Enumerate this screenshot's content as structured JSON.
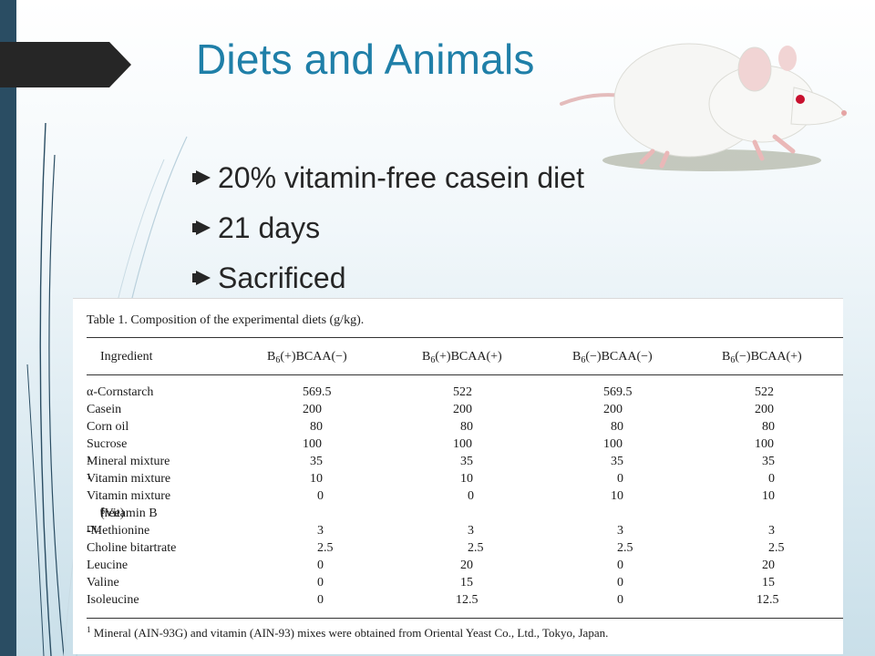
{
  "slide": {
    "title": "Diets and Animals",
    "bullets": [
      "20% vitamin-free casein diet",
      "21 days",
      "Sacrificed"
    ],
    "colors": {
      "title": "#1f7fa8",
      "left_bar": "#2a4d63",
      "arrow_tab": "#262626"
    },
    "image": "white-rat"
  },
  "table": {
    "caption": "Table 1.   Composition of the experimental diets (g/kg).",
    "headers": {
      "ingredient": "Ingredient",
      "col1": {
        "pre": "B",
        "sub": "6",
        "post": "(+)BCAA(−)"
      },
      "col2": {
        "pre": "B",
        "sub": "6",
        "post": "(+)BCAA(+)"
      },
      "col3": {
        "pre": "B",
        "sub": "6",
        "post": "(−)BCAA(−)"
      },
      "col4": {
        "pre": "B",
        "sub": "6",
        "post": "(−)BCAA(+)"
      }
    },
    "rows": [
      {
        "name": "α-Cornstarch",
        "values": [
          "569.5",
          "522",
          "569.5",
          "522"
        ]
      },
      {
        "name": "Casein",
        "values": [
          "200",
          "200",
          "200",
          "200"
        ]
      },
      {
        "name": "Corn oil",
        "values": [
          "80",
          "80",
          "80",
          "80"
        ]
      },
      {
        "name": "Sucrose",
        "values": [
          "100",
          "100",
          "100",
          "100"
        ]
      },
      {
        "name": "Mineral mixture",
        "sup": "1",
        "values": [
          "35",
          "35",
          "35",
          "35"
        ]
      },
      {
        "name": "Vitamin mixture",
        "sup": "1",
        "values": [
          "10",
          "10",
          "0",
          "0"
        ]
      },
      {
        "name": "Vitamin mixture",
        "values": [
          "0",
          "0",
          "10",
          "10"
        ]
      },
      {
        "name_pre": "(Vitamin B",
        "name_sub": "6",
        "name_post": " free)",
        "sup": "1",
        "values": []
      },
      {
        "name_prefix": "DL",
        "name": "-Methionine",
        "values": [
          "3",
          "3",
          "3",
          "3"
        ]
      },
      {
        "name": "Choline bitartrate",
        "values": [
          "2.5",
          "2.5",
          "2.5",
          "2.5"
        ]
      },
      {
        "name": "Leucine",
        "values": [
          "0",
          "20",
          "0",
          "20"
        ]
      },
      {
        "name": "Valine",
        "values": [
          "0",
          "15",
          "0",
          "15"
        ]
      },
      {
        "name": "Isoleucine",
        "values": [
          "0",
          "12.5",
          "0",
          "12.5"
        ]
      }
    ],
    "footnote_marker": "1",
    "footnote": " Mineral (AIN-93G) and vitamin (AIN-93) mixes were obtained from Oriental Yeast Co., Ltd., Tokyo, Japan."
  }
}
